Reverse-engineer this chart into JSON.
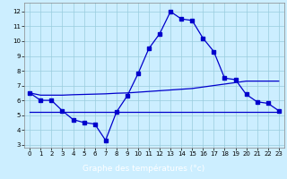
{
  "x": [
    0,
    1,
    2,
    3,
    4,
    5,
    6,
    7,
    8,
    9,
    10,
    11,
    12,
    13,
    14,
    15,
    16,
    17,
    18,
    19,
    20,
    21,
    22,
    23
  ],
  "temp": [
    6.5,
    6.0,
    6.0,
    5.3,
    4.7,
    4.5,
    4.4,
    3.3,
    5.2,
    6.3,
    7.8,
    9.5,
    10.5,
    12.0,
    11.5,
    11.4,
    10.2,
    9.3,
    7.5,
    7.4,
    6.4,
    5.9,
    5.8,
    5.3
  ],
  "line_upper": [
    6.5,
    6.35,
    6.35,
    6.35,
    6.38,
    6.4,
    6.42,
    6.44,
    6.48,
    6.5,
    6.55,
    6.6,
    6.65,
    6.7,
    6.75,
    6.8,
    6.9,
    7.0,
    7.1,
    7.2,
    7.3,
    7.3,
    7.3,
    7.3
  ],
  "line_lower": [
    5.2,
    5.2,
    5.2,
    5.2,
    5.2,
    5.2,
    5.2,
    5.2,
    5.2,
    5.2,
    5.2,
    5.2,
    5.2,
    5.2,
    5.2,
    5.2,
    5.2,
    5.2,
    5.2,
    5.2,
    5.2,
    5.2,
    5.2,
    5.2
  ],
  "bg_color": "#cceeff",
  "line_color": "#0000cc",
  "grid_color": "#99ccdd",
  "xlabel": "Graphe des températures (°c)",
  "xlabel_bg": "#1133aa",
  "xlabel_color": "#ffffff",
  "ylim": [
    2.8,
    12.6
  ],
  "yticks": [
    3,
    4,
    5,
    6,
    7,
    8,
    9,
    10,
    11,
    12
  ],
  "xticks": [
    0,
    1,
    2,
    3,
    4,
    5,
    6,
    7,
    8,
    9,
    10,
    11,
    12,
    13,
    14,
    15,
    16,
    17,
    18,
    19,
    20,
    21,
    22,
    23
  ],
  "tick_fontsize": 5.0,
  "xlabel_fontsize": 6.5
}
